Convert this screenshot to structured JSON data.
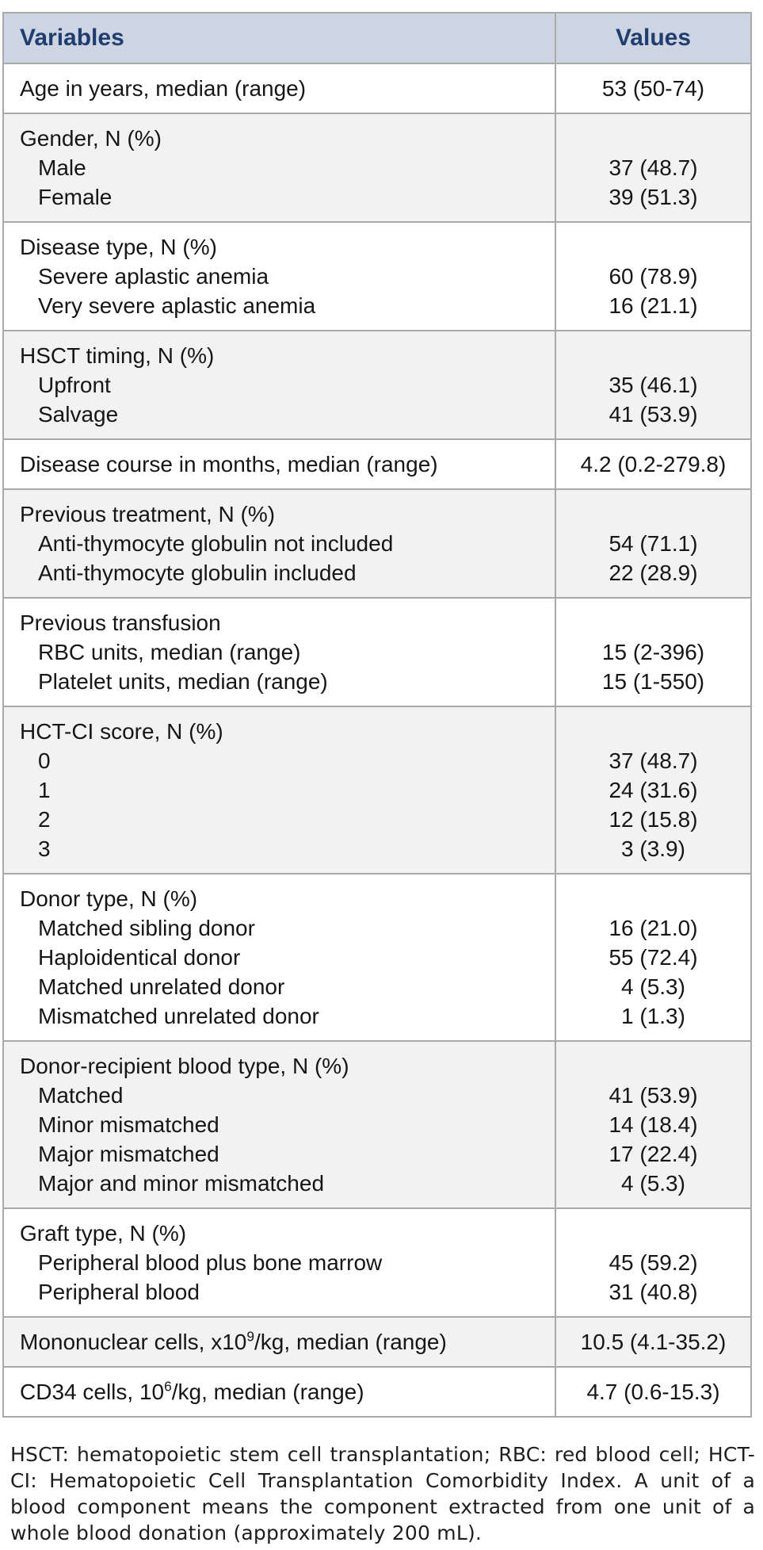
{
  "colors": {
    "header_bg": "#ccd5e1",
    "header_text": "#1f3d6e",
    "border": "#a9a9a9",
    "row_alt_bg": "#f2f2f2",
    "text": "#161616",
    "footnote_text": "#1e1e1e"
  },
  "table": {
    "header": {
      "variables": "Variables",
      "values": "Values"
    },
    "rows": [
      {
        "label": "Age in years, median (range)",
        "value": "53 (50-74)"
      },
      {
        "label": "Gender, N (%)",
        "items": [
          {
            "label": "Male",
            "value": "37 (48.7)"
          },
          {
            "label": "Female",
            "value": "39 (51.3)"
          }
        ]
      },
      {
        "label": "Disease type, N (%)",
        "items": [
          {
            "label": "Severe aplastic anemia",
            "value": "60 (78.9)"
          },
          {
            "label": "Very severe aplastic anemia",
            "value": "16 (21.1)"
          }
        ]
      },
      {
        "label": "HSCT timing, N (%)",
        "items": [
          {
            "label": "Upfront",
            "value": "35 (46.1)"
          },
          {
            "label": "Salvage",
            "value": "41 (53.9)"
          }
        ]
      },
      {
        "label": "Disease course in months, median (range)",
        "value": "4.2 (0.2-279.8)"
      },
      {
        "label": "Previous treatment, N (%)",
        "items": [
          {
            "label": "Anti-thymocyte globulin not included",
            "value": "54 (71.1)"
          },
          {
            "label": "Anti-thymocyte globulin included",
            "value": "22 (28.9)"
          }
        ]
      },
      {
        "label": "Previous transfusion",
        "items": [
          {
            "label": "RBC units, median (range)",
            "value": "15 (2-396)"
          },
          {
            "label": "Platelet units, median (range)",
            "value": "15 (1-550)"
          }
        ]
      },
      {
        "label": "HCT-CI score, N (%)",
        "items": [
          {
            "label": "0",
            "value": "37 (48.7)"
          },
          {
            "label": "1",
            "value": "24 (31.6)"
          },
          {
            "label": "2",
            "value": "12 (15.8)"
          },
          {
            "label": "3",
            "value": "3 (3.9)"
          }
        ]
      },
      {
        "label": "Donor type, N (%)",
        "items": [
          {
            "label": "Matched sibling donor",
            "value": "16 (21.0)"
          },
          {
            "label": "Haploidentical donor",
            "value": "55 (72.4)"
          },
          {
            "label": "Matched unrelated donor",
            "value": "4 (5.3)"
          },
          {
            "label": "Mismatched unrelated donor",
            "value": "1 (1.3)"
          }
        ]
      },
      {
        "label": "Donor-recipient blood type, N (%)",
        "items": [
          {
            "label": "Matched",
            "value": "41 (53.9)"
          },
          {
            "label": "Minor mismatched",
            "value": "14 (18.4)"
          },
          {
            "label": "Major mismatched",
            "value": "17 (22.4)"
          },
          {
            "label": "Major and minor mismatched",
            "value": "4 (5.3)"
          }
        ]
      },
      {
        "label": "Graft type, N (%)",
        "items": [
          {
            "label": "Peripheral blood plus bone marrow",
            "value": "45 (59.2)"
          },
          {
            "label": "Peripheral blood",
            "value": "31 (40.8)"
          }
        ]
      },
      {
        "label": {
          "pre": "Mononuclear cells, x10",
          "sup": "9",
          "post": "/kg, median (range)"
        },
        "value": "10.5 (4.1-35.2)"
      },
      {
        "label": {
          "pre": "CD34 cells, 10",
          "sup": "6",
          "post": "/kg, median (range)"
        },
        "value": "4.7 (0.6-15.3)"
      }
    ]
  },
  "footnote": "HSCT: hematopoietic stem cell transplantation; RBC: red blood cell; HCT-CI: Hematopoietic Cell Transplantation Comorbidity Index. A unit of a blood component means the component extracted from one unit of a whole blood donation (approximately 200 mL)."
}
